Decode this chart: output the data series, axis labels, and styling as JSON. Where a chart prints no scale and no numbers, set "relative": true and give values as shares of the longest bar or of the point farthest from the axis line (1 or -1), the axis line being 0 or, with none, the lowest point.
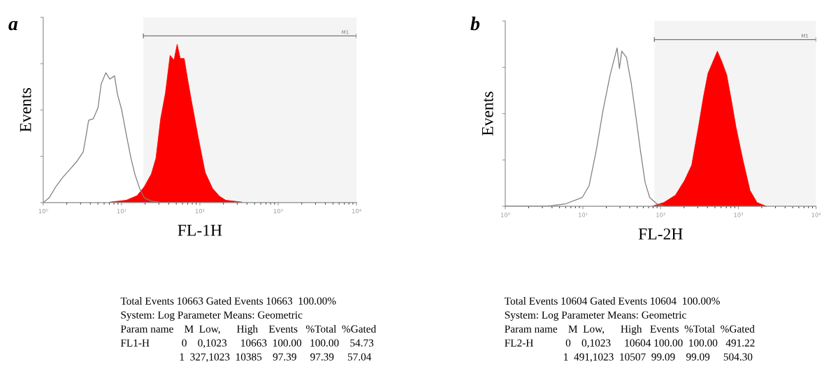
{
  "chart_data": [
    {
      "type": "area",
      "title": "a",
      "xlabel": "FL-1H",
      "ylabel": "Events",
      "relative": true,
      "log": "x",
      "xlim": [
        1,
        10000
      ],
      "xticks": [
        {
          "value": 1,
          "label": "10⁰"
        },
        {
          "value": 10,
          "label": "10¹"
        },
        {
          "value": 100,
          "label": "10²"
        },
        {
          "value": 1000,
          "label": "10³"
        },
        {
          "value": 10000,
          "label": "10⁴"
        }
      ],
      "tick_labels": "x",
      "grid": false,
      "legend": false,
      "series": [
        {
          "type": "line",
          "color": "#7f7f7f",
          "x": [
            1,
            1.19,
            1.45,
            1.78,
            2.19,
            2.69,
            3.24,
            3.55,
            3.8,
            4.37,
            5.01,
            5.5,
            6.31,
            7.08,
            8.13,
            8.91,
            10,
            11.5,
            13.2,
            14.8,
            17,
            19.5,
            24,
            31.6
          ],
          "values": [
            0,
            0.03,
            0.1,
            0.16,
            0.21,
            0.26,
            0.32,
            0.43,
            0.52,
            0.53,
            0.6,
            0.75,
            0.82,
            0.78,
            0.8,
            0.68,
            0.59,
            0.43,
            0.28,
            0.18,
            0.09,
            0.03,
            0.01,
            0
          ]
        },
        {
          "type": "area",
          "color": "#ff0000",
          "x": [
            7.08,
            11.5,
            15.8,
            19.5,
            24,
            27.5,
            31.6,
            36.3,
            41.7,
            46.8,
            51.3,
            56.2,
            63.1,
            69.2,
            77.6,
            95.5,
            117,
            145,
            178,
            214,
            347
          ],
          "values": [
            0.003,
            0.015,
            0.044,
            0.1,
            0.18,
            0.28,
            0.53,
            0.69,
            0.93,
            0.9,
            1,
            0.91,
            0.91,
            0.79,
            0.65,
            0.41,
            0.19,
            0.09,
            0.04,
            0.015,
            0.003
          ]
        }
      ],
      "bands": [
        {
          "axis": "x",
          "from": 19,
          "to": 10000,
          "label": "M1"
        }
      ],
      "annotations": [
        "Total Events 10663 Gated Events 10663  100.00%",
        "System: Log Parameter Means: Geometric",
        "Param name    M  Low,      High    Events   %Total  %Gated",
        "FL1-H            0    0,1023     10663  100.00   100.00    54.73",
        "                      1  327,1023  10385    97.39     97.39     57.04"
      ]
    },
    {
      "type": "area",
      "title": "b",
      "xlabel": "FL-2H",
      "ylabel": "Events",
      "relative": true,
      "log": "x",
      "xlim": [
        1,
        10000
      ],
      "xticks": [
        {
          "value": 1,
          "label": "10⁰"
        },
        {
          "value": 10,
          "label": "10¹"
        },
        {
          "value": 100,
          "label": "10²"
        },
        {
          "value": 1000,
          "label": "10³"
        },
        {
          "value": 10000,
          "label": "10⁴"
        }
      ],
      "tick_labels": "x",
      "grid": false,
      "legend": false,
      "series": [
        {
          "type": "line",
          "color": "#7f7f7f",
          "x": [
            1,
            3.47,
            6.03,
            9.77,
            12,
            14.8,
            18.2,
            22.4,
            27.5,
            29.5,
            31.6,
            36.3,
            41.7,
            47.9,
            55,
            63.1,
            72.4,
            89.1,
            110
          ],
          "values": [
            0,
            0,
            0.016,
            0.055,
            0.13,
            0.35,
            0.61,
            0.83,
            1,
            0.87,
            0.98,
            0.94,
            0.78,
            0.57,
            0.35,
            0.15,
            0.055,
            0.016,
            0
          ]
        },
        {
          "type": "area",
          "color": "#ff0000",
          "x": [
            77.6,
            110,
            155,
            204,
            251,
            309,
            355,
            407,
            468,
            537,
            617,
            708,
            813,
            933,
            1148,
            1413,
            1738,
            2291
          ],
          "values": [
            0,
            0.024,
            0.07,
            0.165,
            0.26,
            0.51,
            0.69,
            0.84,
            0.91,
            0.98,
            0.91,
            0.83,
            0.67,
            0.5,
            0.29,
            0.1,
            0.024,
            0
          ]
        }
      ],
      "bands": [
        {
          "axis": "x",
          "from": 83,
          "to": 10000,
          "label": "M1"
        }
      ],
      "annotations": [
        "Total Events 10604 Gated Events 10604  100.00%",
        "System: Log Parameter Means: Geometric",
        "Param name    M  Low,      High   Events  %Total  %Gated",
        "FL2-H            0    0,1023     10604 100.00  100.00   491.22",
        "                      1  491,1023  10507  99.09    99.09     504.30"
      ]
    }
  ]
}
